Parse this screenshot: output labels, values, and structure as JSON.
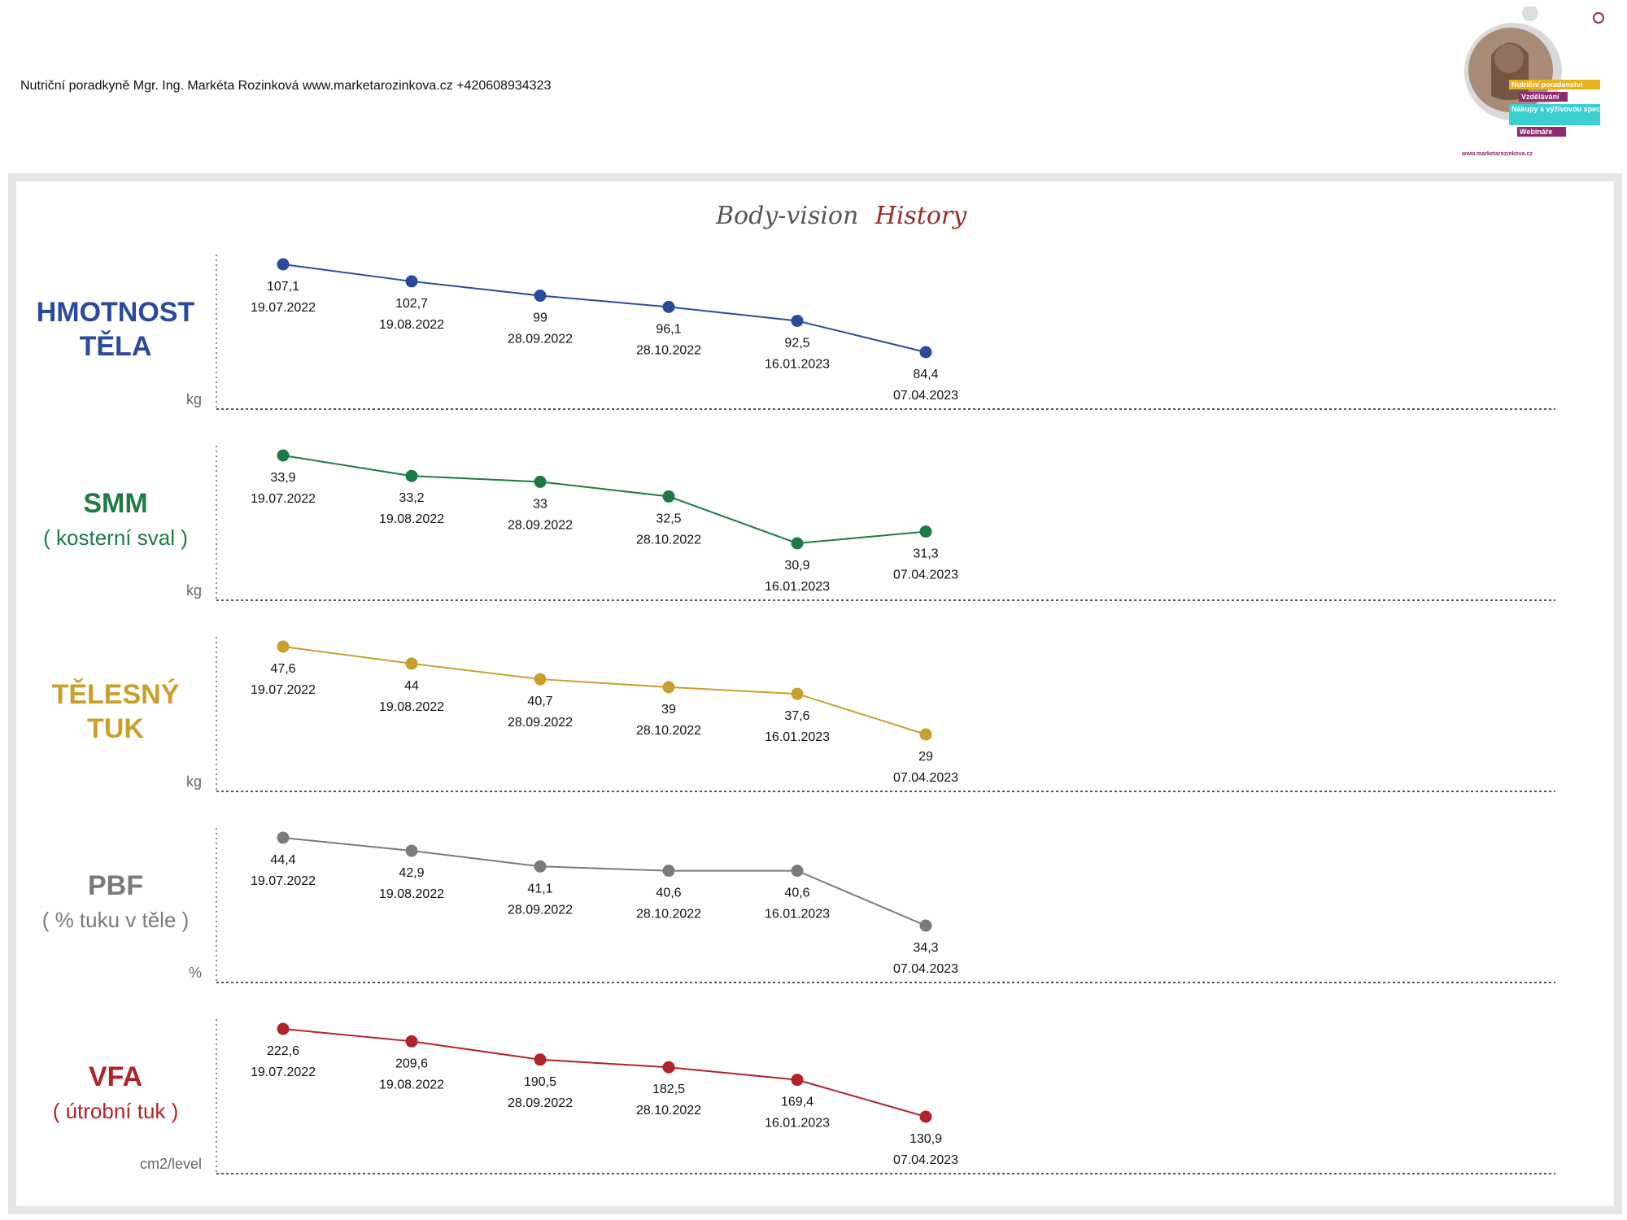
{
  "header": {
    "text": "Nutriční poradkyně Mgr. Ing. Markéta Rozinková www.marketarozinkova.cz +420608934323"
  },
  "logo": {
    "tags": [
      "Nutriční poradenství",
      "Vzdělávání",
      "Nákupy s výživovou specialistkou",
      "Webináře"
    ],
    "url": "www.marketarozinkova.cz",
    "tag_colors": [
      "#e8b21c",
      "#8e2a6e",
      "#3ccfd0",
      "#8e2a6e"
    ]
  },
  "title": {
    "part1": "Body-vision",
    "part2": "History"
  },
  "chart_data": [
    {
      "type": "line",
      "label_lines": [
        "HMOTNOST",
        "TĚLA"
      ],
      "unit": "kg",
      "color": "#2a4b9b",
      "x": [
        "19.07.2022",
        "19.08.2022",
        "28.09.2022",
        "28.10.2022",
        "16.01.2023",
        "07.04.2023"
      ],
      "values": [
        107.1,
        102.7,
        99,
        96.1,
        92.5,
        84.4
      ],
      "value_labels": [
        "107,1",
        "102,7",
        "99",
        "96,1",
        "92,5",
        "84,4"
      ]
    },
    {
      "type": "line",
      "label_lines": [
        "SMM",
        "( kosterní sval )"
      ],
      "unit": "kg",
      "color": "#1e7a44",
      "x": [
        "19.07.2022",
        "19.08.2022",
        "28.09.2022",
        "28.10.2022",
        "16.01.2023",
        "07.04.2023"
      ],
      "values": [
        33.9,
        33.2,
        33,
        32.5,
        30.9,
        31.3
      ],
      "value_labels": [
        "33,9",
        "33,2",
        "33",
        "32,5",
        "30,9",
        "31,3"
      ]
    },
    {
      "type": "line",
      "label_lines": [
        "TĚLESNÝ",
        "TUK"
      ],
      "unit": "kg",
      "color": "#c9a02e",
      "x": [
        "19.07.2022",
        "19.08.2022",
        "28.09.2022",
        "28.10.2022",
        "16.01.2023",
        "07.04.2023"
      ],
      "values": [
        47.6,
        44,
        40.7,
        39,
        37.6,
        29
      ],
      "value_labels": [
        "47,6",
        "44",
        "40,7",
        "39",
        "37,6",
        "29"
      ]
    },
    {
      "type": "line",
      "label_lines": [
        "PBF",
        "( % tuku v těle )"
      ],
      "unit": "%",
      "color": "#7a7a7a",
      "x": [
        "19.07.2022",
        "19.08.2022",
        "28.09.2022",
        "28.10.2022",
        "16.01.2023",
        "07.04.2023"
      ],
      "values": [
        44.4,
        42.9,
        41.1,
        40.6,
        40.6,
        34.3
      ],
      "value_labels": [
        "44,4",
        "42,9",
        "41,1",
        "40,6",
        "40,6",
        "34,3"
      ]
    },
    {
      "type": "line",
      "label_lines": [
        "VFA",
        "( útrobní tuk )"
      ],
      "unit": "cm2/level",
      "color": "#b0232a",
      "x": [
        "19.07.2022",
        "19.08.2022",
        "28.09.2022",
        "28.10.2022",
        "16.01.2023",
        "07.04.2023"
      ],
      "values": [
        222.6,
        209.6,
        190.5,
        182.5,
        169.4,
        130.9
      ],
      "value_labels": [
        "222,6",
        "209,6",
        "190,5",
        "182,5",
        "169,4",
        "130,9"
      ]
    }
  ]
}
